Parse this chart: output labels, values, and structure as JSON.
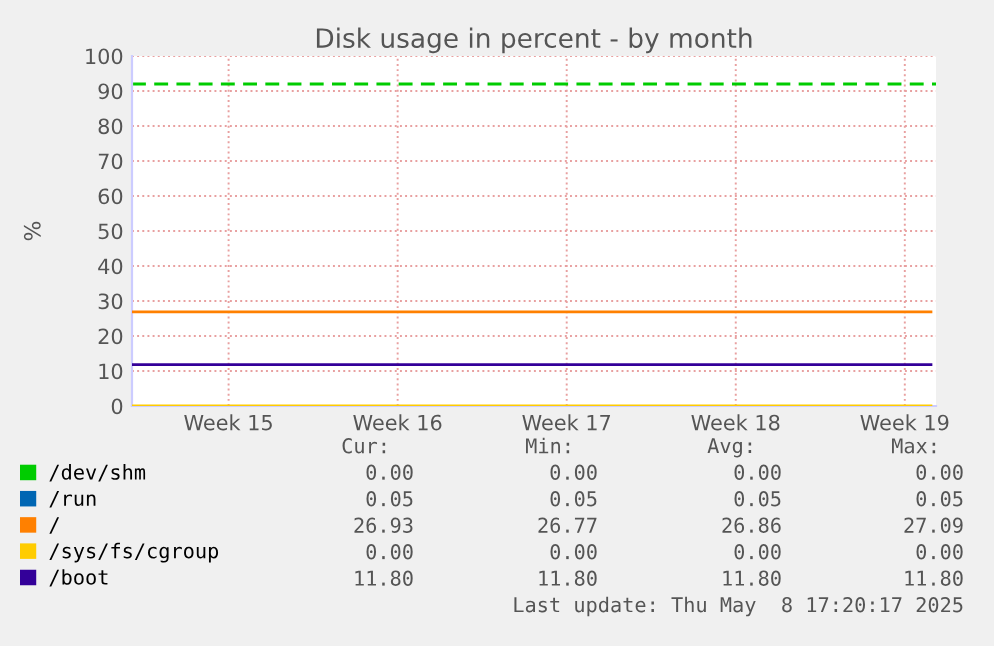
{
  "chart_data": {
    "type": "line",
    "title": "Disk usage in percent - by month",
    "ylabel": "%",
    "xlim": [
      "2025-04-06T12:00",
      "2025-05-09T19:00"
    ],
    "xticks": [
      {
        "value": "2025-04-10T12:00",
        "label": "Week 15"
      },
      {
        "value": "2025-04-17T12:00",
        "label": "Week 16"
      },
      {
        "value": "2025-04-24T12:00",
        "label": "Week 17"
      },
      {
        "value": "2025-05-01T12:00",
        "label": "Week 18"
      },
      {
        "value": "2025-05-08T12:00",
        "label": "Week 19"
      }
    ],
    "ylim": [
      0,
      100
    ],
    "yticks": [
      0,
      10,
      20,
      30,
      40,
      50,
      60,
      70,
      80,
      90,
      100
    ],
    "grid": true,
    "legend": "bottom",
    "marker": "none",
    "line_style": "solid",
    "x": [
      "2025-04-06T12:00",
      "2025-05-09T14:00"
    ],
    "series": [
      {
        "name": "/dev/shm",
        "color": "#00cc00",
        "values": [
          null,
          null
        ]
      },
      {
        "name": "/run",
        "color": "#0066b3",
        "values": [
          null,
          null
        ]
      },
      {
        "name": "/",
        "color": "#ff8000",
        "values": [
          26.9,
          26.9
        ]
      },
      {
        "name": "/sys/fs/cgroup",
        "color": "#ffcc00",
        "values": [
          0,
          0
        ]
      },
      {
        "name": "/boot",
        "color": "#330099",
        "values": [
          11.8,
          11.8
        ]
      }
    ],
    "ref_lines": [
      {
        "axis": "y",
        "value": 92,
        "color": "#00cc00",
        "line_style": "dashed"
      }
    ],
    "annotations": [
      "Cur:",
      "Min:",
      "Avg:",
      "Max:",
      "0.00",
      "0.00",
      "0.00",
      "0.00",
      "0.05",
      "0.05",
      "0.05",
      "0.05",
      "26.93",
      "26.77",
      "26.86",
      "27.09",
      "0.00",
      "0.00",
      "0.00",
      "0.00",
      "11.80",
      "11.80",
      "11.80",
      "11.80",
      "Last update: Thu May  8 17:20:17 2025"
    ]
  }
}
